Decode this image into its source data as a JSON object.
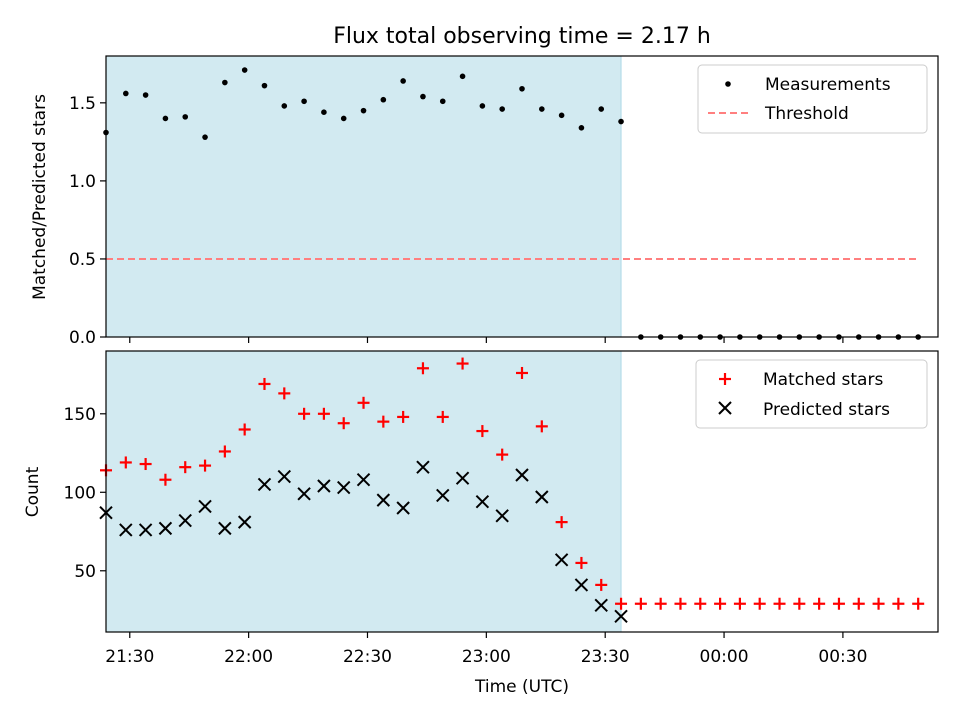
{
  "chart_data": {
    "title": "Flux total observing time = 2.17 h",
    "xlabel": "Time (UTC)",
    "xtick_labels": [
      "21:30",
      "22:00",
      "22:30",
      "23:00",
      "23:30",
      "00:00",
      "00:30"
    ],
    "xtick_times": [
      "21:30",
      "22:00",
      "22:30",
      "23:00",
      "23:30",
      "00:00",
      "00:30"
    ],
    "x_range": [
      "21:24",
      "00:54"
    ],
    "observing_window": [
      "21:24",
      "23:34"
    ],
    "colors": {
      "window": "#add8e6",
      "measurement": "#000000",
      "threshold": "#ff7f7f",
      "matched": "#ff0000",
      "predicted": "#000000"
    },
    "times": [
      "21:24",
      "21:29",
      "21:34",
      "21:39",
      "21:44",
      "21:49",
      "21:54",
      "21:59",
      "22:04",
      "22:09",
      "22:14",
      "22:19",
      "22:24",
      "22:29",
      "22:34",
      "22:39",
      "22:44",
      "22:49",
      "22:54",
      "22:59",
      "23:04",
      "23:09",
      "23:14",
      "23:19",
      "23:24",
      "23:29",
      "23:34",
      "23:39",
      "23:44",
      "23:49",
      "23:54",
      "23:59",
      "00:04",
      "00:09",
      "00:14",
      "00:19",
      "00:24",
      "00:29",
      "00:34",
      "00:39",
      "00:44",
      "00:49"
    ],
    "top": {
      "type": "scatter",
      "ylabel": "Matched/Predicted stars",
      "ylim": [
        0,
        1.8
      ],
      "yticks": [
        "0.0",
        "0.5",
        "1.0",
        "1.5"
      ],
      "ytick_values": [
        0,
        0.5,
        1.0,
        1.5
      ],
      "legend_position": "top-right",
      "series": [
        {
          "name": "Measurements",
          "values": [
            1.31,
            1.56,
            1.55,
            1.4,
            1.41,
            1.28,
            1.63,
            1.71,
            1.61,
            1.48,
            1.51,
            1.44,
            1.4,
            1.45,
            1.52,
            1.64,
            1.54,
            1.51,
            1.67,
            1.48,
            1.46,
            1.59,
            1.46,
            1.42,
            1.34,
            1.46,
            1.38,
            0,
            0,
            0,
            0,
            0,
            0,
            0,
            0,
            0,
            0,
            0,
            0,
            0,
            0,
            0
          ]
        },
        {
          "name": "Threshold",
          "value": 0.5,
          "x_range": [
            "21:24",
            "00:49"
          ]
        }
      ]
    },
    "bottom": {
      "type": "scatter",
      "ylabel": "Count",
      "ylim": [
        11,
        190
      ],
      "yticks": [
        "50",
        "100",
        "150"
      ],
      "ytick_values": [
        50,
        100,
        150
      ],
      "legend_position": "top-right",
      "series": [
        {
          "name": "Matched stars",
          "values": [
            114,
            119,
            118,
            108,
            116,
            117,
            126,
            140,
            169,
            163,
            150,
            150,
            144,
            157,
            145,
            148,
            179,
            148,
            182,
            139,
            124,
            176,
            142,
            81,
            55,
            41,
            29,
            29,
            29,
            29,
            29,
            29,
            29,
            29,
            29,
            29,
            29,
            29,
            29,
            29,
            29,
            29
          ]
        },
        {
          "name": "Predicted stars",
          "values": [
            87,
            76,
            76,
            77,
            82,
            91,
            77,
            81,
            105,
            110,
            99,
            104,
            103,
            108,
            95,
            90,
            116,
            98,
            109,
            94,
            85,
            111,
            97,
            57,
            41,
            28,
            21
          ]
        }
      ]
    }
  }
}
